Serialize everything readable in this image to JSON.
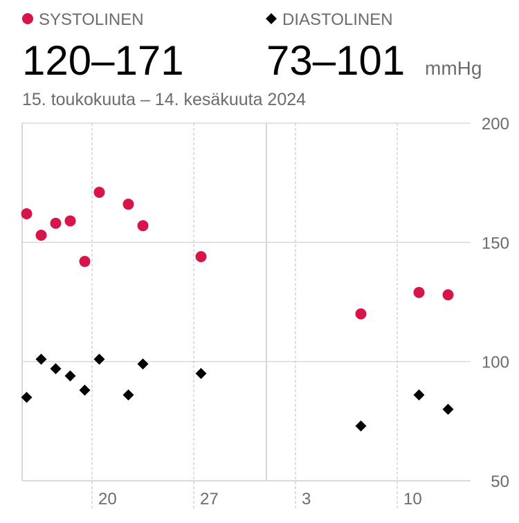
{
  "chart_data": {
    "type": "scatter",
    "subtitle": "15. toukokuuta – 14. kesäkuuta 2024",
    "unit": "mmHg",
    "categories": [
      null,
      null,
      null,
      null,
      null,
      "20",
      null,
      null,
      null,
      null,
      null,
      null,
      "27",
      null,
      null,
      null,
      null,
      null,
      null,
      "3",
      null,
      null,
      null,
      null,
      null,
      null,
      "10",
      null,
      null,
      null,
      null
    ],
    "series": [
      {
        "name": "SYSTOLINEN",
        "range": "120–171",
        "color": "#d6154b",
        "marker": "circle",
        "values": [
          162,
          153,
          158,
          159,
          142,
          171,
          null,
          166,
          157,
          null,
          null,
          null,
          144,
          null,
          null,
          null,
          null,
          null,
          null,
          null,
          null,
          null,
          null,
          120,
          null,
          null,
          null,
          129,
          null,
          128,
          null
        ]
      },
      {
        "name": "DIASTOLINEN",
        "range": "73–101",
        "color": "#000000",
        "marker": "diamond",
        "values": [
          85,
          101,
          97,
          94,
          88,
          101,
          null,
          86,
          99,
          null,
          null,
          null,
          95,
          null,
          null,
          null,
          null,
          null,
          null,
          null,
          null,
          null,
          null,
          73,
          null,
          null,
          null,
          86,
          null,
          80,
          null
        ]
      }
    ],
    "ylim": [
      50,
      200
    ],
    "yticks": [
      50,
      100,
      150,
      200
    ],
    "grid": true
  }
}
